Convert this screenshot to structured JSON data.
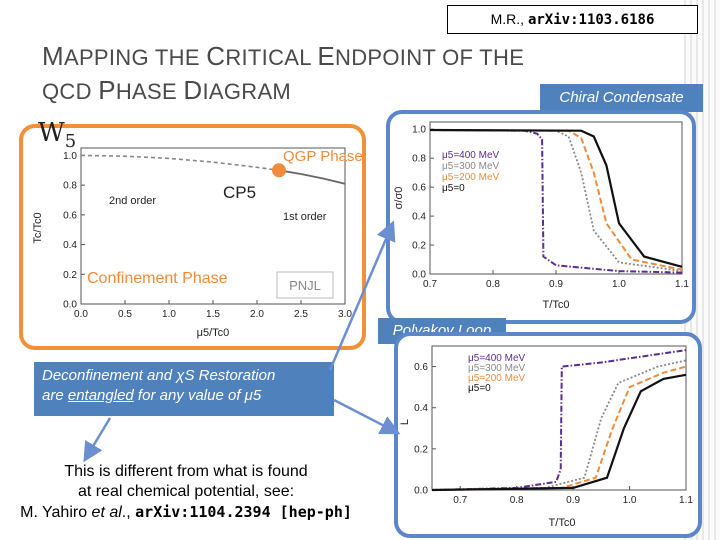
{
  "header": {
    "ref_author": "M.R., ",
    "ref_arxiv": "arXiv:1103.6186",
    "title_line1_prefix": "M",
    "title_line1_a": "APPING THE ",
    "title_line1_b_big": "C",
    "title_line1_b": "RITICAL ",
    "title_line1_c_big": "E",
    "title_line1_c": "NDPOINT OF THE",
    "title_line2_a": "QCD ",
    "title_line2_b_big": "P",
    "title_line2_b": "HASE ",
    "title_line2_c_big": "D",
    "title_line2_c": "IAGRAM",
    "w_symbol": "W",
    "w_subscript": "5"
  },
  "labels": {
    "chiral": "Chiral Condensate",
    "polyakov": "Polyakov Loop",
    "deconf_line1": "Deconfinement and χS Restoration",
    "deconf_line2a": "are ",
    "deconf_line2_underline": "entangled",
    "deconf_line2b": " for any value of μ5",
    "diff_line1": "This is different from what is found",
    "diff_line2": "at real chemical potential, see:",
    "diff_line3a": "M. Yahiro ",
    "diff_line3_etal": "et al",
    "diff_line3b": "., ",
    "diff_line3_mono": "arXiv:1104.2394 [hep-ph]"
  },
  "colors": {
    "accent_blue": "#4f81bd",
    "panel_border_blue": "#5b86c8",
    "phase_border_orange": "#f0913a",
    "qgp_orange": "#f08a3c",
    "purple": "#5a2d91"
  },
  "chart_data": [
    {
      "type": "line",
      "ylabel": "Tc/Tc0",
      "xlabel": "μ5/Tc0",
      "xlim": [
        0,
        3.0
      ],
      "ylim": [
        0,
        1.05
      ],
      "x_ticks": [
        "0.0",
        "0.5",
        "1.0",
        "1.5",
        "2.0",
        "2.5",
        "3.0"
      ],
      "y_ticks": [
        "0.0",
        "0.2",
        "0.4",
        "0.6",
        "0.8",
        "1.0"
      ],
      "annotations": [
        "QGP Phase",
        "CP5",
        "2nd order",
        "1st order",
        "Confinement Phase",
        "PNJL"
      ],
      "series": [
        {
          "style": "dashed",
          "x": [
            0,
            0.5,
            1.0,
            1.5,
            2.0,
            2.25
          ],
          "y": [
            1.0,
            0.995,
            0.98,
            0.955,
            0.92,
            0.9
          ]
        },
        {
          "style": "solid",
          "x": [
            2.25,
            2.5,
            2.75,
            3.0
          ],
          "y": [
            0.9,
            0.875,
            0.845,
            0.81
          ]
        }
      ],
      "critical_point": {
        "x": 2.25,
        "y": 0.9
      }
    },
    {
      "type": "line",
      "ylabel": "σ/σ0",
      "xlabel": "T/Tc0",
      "xlim": [
        0.7,
        1.1
      ],
      "ylim": [
        0,
        1.05
      ],
      "x_ticks": [
        "0.7",
        "0.8",
        "0.9",
        "1.0",
        "1.1"
      ],
      "y_ticks": [
        "0.0",
        "0.2",
        "0.4",
        "0.6",
        "0.8",
        "1.0"
      ],
      "legend_location": "left",
      "series": [
        {
          "name": "μ5=400 MeV",
          "x": [
            0.7,
            0.85,
            0.87,
            0.878,
            0.88,
            0.9,
            1.0,
            1.1
          ],
          "y": [
            0.995,
            0.99,
            0.97,
            0.93,
            0.12,
            0.06,
            0.02,
            0.01
          ]
        },
        {
          "name": "μ5=300 MeV",
          "x": [
            0.7,
            0.9,
            0.92,
            0.94,
            0.96,
            1.0,
            1.1
          ],
          "y": [
            0.995,
            0.99,
            0.95,
            0.7,
            0.3,
            0.08,
            0.02
          ]
        },
        {
          "name": "μ5=200 MeV",
          "x": [
            0.7,
            0.92,
            0.94,
            0.96,
            0.98,
            1.02,
            1.1
          ],
          "y": [
            0.995,
            0.99,
            0.94,
            0.7,
            0.35,
            0.1,
            0.03
          ]
        },
        {
          "name": "μ5=0",
          "x": [
            0.7,
            0.94,
            0.96,
            0.98,
            1.0,
            1.04,
            1.1
          ],
          "y": [
            0.995,
            0.99,
            0.95,
            0.75,
            0.35,
            0.12,
            0.05
          ]
        }
      ]
    },
    {
      "type": "line",
      "ylabel": "L",
      "xlabel": "T/Tc0",
      "xlim": [
        0.65,
        1.1
      ],
      "ylim": [
        0,
        0.7
      ],
      "x_ticks": [
        "0.7",
        "0.8",
        "0.9",
        "1.0",
        "1.1"
      ],
      "y_ticks": [
        "0.0",
        "0.2",
        "0.4",
        "0.6"
      ],
      "legend_location": "top-right",
      "series": [
        {
          "name": "μ5=400 MeV",
          "x": [
            0.65,
            0.8,
            0.87,
            0.878,
            0.88,
            0.95,
            1.05,
            1.1
          ],
          "y": [
            0.0,
            0.01,
            0.04,
            0.1,
            0.6,
            0.62,
            0.66,
            0.68
          ]
        },
        {
          "name": "μ5=300 MeV",
          "x": [
            0.65,
            0.85,
            0.92,
            0.95,
            0.98,
            1.05,
            1.1
          ],
          "y": [
            0.0,
            0.01,
            0.06,
            0.35,
            0.52,
            0.6,
            0.63
          ]
        },
        {
          "name": "μ5=200 MeV",
          "x": [
            0.65,
            0.88,
            0.94,
            0.97,
            1.0,
            1.06,
            1.1
          ],
          "y": [
            0.0,
            0.01,
            0.06,
            0.3,
            0.5,
            0.57,
            0.6
          ]
        },
        {
          "name": "μ5=0",
          "x": [
            0.65,
            0.9,
            0.96,
            0.99,
            1.02,
            1.06,
            1.1
          ],
          "y": [
            0.0,
            0.01,
            0.06,
            0.3,
            0.48,
            0.54,
            0.56
          ]
        }
      ]
    }
  ]
}
